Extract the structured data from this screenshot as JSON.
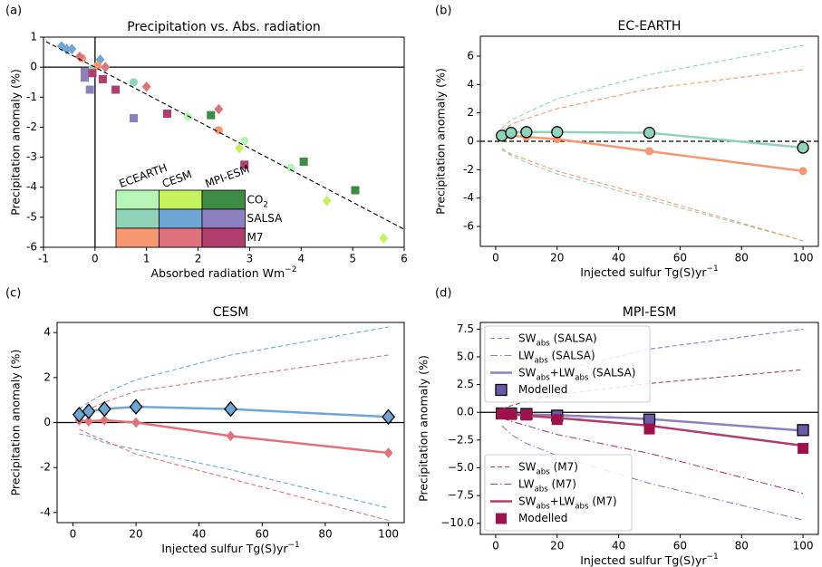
{
  "chart_data": [
    {
      "type": "scatter",
      "panel": "(a)",
      "title": "Precipitation vs. Abs. radiation",
      "xlabel": [
        "Absorbed radiation Wm",
        {
          "sup": "−2"
        }
      ],
      "ylabel": "Precipitation anomaly (%)",
      "xlim": [
        -1,
        6
      ],
      "ylim": [
        -6,
        1
      ],
      "xticks": [
        -1,
        0,
        1,
        2,
        3,
        4,
        5,
        6
      ],
      "yticks": [
        -6,
        -5,
        -4,
        -3,
        -2,
        -1,
        0,
        1
      ],
      "hlines": [
        {
          "y": 0,
          "color": "#000000",
          "linestyle": "solid"
        }
      ],
      "vlines": [
        {
          "x": 0,
          "color": "#000000",
          "linestyle": "solid"
        }
      ],
      "series": [
        {
          "x": [
            1.8,
            2.9,
            3.8
          ],
          "values": [
            -1.65,
            -2.45,
            -3.35
          ],
          "color": "#b5f5b5",
          "marker": "circle",
          "linestyle": "none"
        },
        {
          "x": [
            2.8,
            4.5,
            5.6
          ],
          "values": [
            -2.7,
            -4.45,
            -5.7
          ],
          "color": "#c6f25e",
          "marker": "diamond",
          "linestyle": "none"
        },
        {
          "x": [
            2.25,
            4.05,
            5.05
          ],
          "values": [
            -1.6,
            -3.15,
            -4.1
          ],
          "color": "#3d8b45",
          "marker": "square",
          "linestyle": "none"
        },
        {
          "x": [
            0.75,
            -0.05
          ],
          "values": [
            -0.5,
            -0.05
          ],
          "color": "#8fd4b9",
          "marker": "circle",
          "linestyle": "none"
        },
        {
          "x": [
            -0.65,
            -0.55,
            -0.45,
            0.1
          ],
          "values": [
            0.7,
            0.6,
            0.6,
            0.25
          ],
          "color": "#6ea7d5",
          "marker": "diamond",
          "linestyle": "none"
        },
        {
          "x": [
            0.75,
            -0.1,
            -0.2,
            -0.2
          ],
          "values": [
            -1.7,
            -0.75,
            -0.35,
            -0.15
          ],
          "color": "#8c80c0",
          "marker": "square",
          "linestyle": "none"
        },
        {
          "x": [
            2.4,
            -0.25,
            0.05
          ],
          "values": [
            -2.1,
            0.3,
            0.05
          ],
          "color": "#f69770",
          "marker": "circle",
          "linestyle": "none"
        },
        {
          "x": [
            1.0,
            2.4,
            0.2,
            -0.3
          ],
          "values": [
            -0.65,
            -1.4,
            0.0,
            0.35
          ],
          "color": "#e0727c",
          "marker": "diamond",
          "linestyle": "none"
        },
        {
          "x": [
            0.4,
            1.4,
            2.9,
            0.15,
            -0.05
          ],
          "values": [
            -0.75,
            -1.55,
            -3.25,
            -0.4,
            -0.2
          ],
          "color": "#b03d6b",
          "marker": "square",
          "linestyle": "none"
        },
        {
          "x": [
            -0.95,
            6
          ],
          "values": [
            0.85,
            -5.4
          ],
          "color": "#000000",
          "linestyle": "dashed"
        }
      ],
      "legend_table": {
        "columns": [
          "ECEARTH",
          "CESM",
          "MPI-ESM"
        ],
        "rows": [
          {
            "label": [
              "CO",
              {
                "sub": "2"
              }
            ],
            "colors": [
              "#b5f5b5",
              "#c6f25e",
              "#3d8b45"
            ]
          },
          {
            "label": "SALSA",
            "colors": [
              "#8fd4b9",
              "#6ea7d5",
              "#8c80c0"
            ]
          },
          {
            "label": "M7",
            "colors": [
              "#f69770",
              "#e0727c",
              "#b03d6b"
            ]
          }
        ]
      }
    },
    {
      "type": "line",
      "panel": "(b)",
      "title": "EC-EARTH",
      "xlabel": [
        "Injected sulfur Tg(S)yr",
        {
          "sup": "−1"
        }
      ],
      "ylabel": "Precipitation anomaly (%)",
      "xlim": [
        -5,
        105
      ],
      "ylim": [
        -7.4,
        7.4
      ],
      "xticks": [
        0,
        20,
        40,
        60,
        80,
        100
      ],
      "yticks": [
        -6,
        -4,
        -2,
        0,
        2,
        4,
        6
      ],
      "hlines": [
        {
          "y": 0,
          "color": "#000000",
          "linestyle": "dashed"
        }
      ],
      "x": [
        2,
        5,
        10,
        20,
        50,
        100
      ],
      "series": [
        {
          "values": [
            0.9,
            1.5,
            2.0,
            3.0,
            4.7,
            6.75
          ],
          "color": "#8fd4b9",
          "linestyle": "dashed"
        },
        {
          "values": [
            0.7,
            1.2,
            1.6,
            2.3,
            3.7,
            5.05
          ],
          "color": "#f69770",
          "linestyle": "dashed"
        },
        {
          "values": [
            -0.6,
            -1.0,
            -1.5,
            -2.3,
            -4.1,
            -7.0
          ],
          "color": "#8fd4b9",
          "linestyle": "dashed"
        },
        {
          "values": [
            -0.5,
            -0.9,
            -1.3,
            -2.1,
            -3.9,
            -7.0
          ],
          "color": "#f69770",
          "linestyle": "dashed"
        },
        {
          "values": [
            0.35,
            0.4,
            0.3,
            0.15,
            -0.7,
            -2.1
          ],
          "color": "#f69770",
          "linestyle": "solid",
          "marker": "circle"
        },
        {
          "values": [
            0.4,
            0.6,
            0.65,
            0.65,
            0.6,
            -0.45
          ],
          "color": "#8fd4b9",
          "linestyle": "solid",
          "marker": "circle",
          "edgecolor": "#000000"
        }
      ]
    },
    {
      "type": "line",
      "panel": "(c)",
      "title": "CESM",
      "xlabel": [
        "Injected sulfur Tg(S)yr",
        {
          "sup": "−1"
        }
      ],
      "ylabel": "Precipitation anomaly (%)",
      "xlim": [
        -5,
        105
      ],
      "ylim": [
        -4.45,
        4.45
      ],
      "xticks": [
        0,
        20,
        40,
        60,
        80,
        100
      ],
      "yticks": [
        -4,
        -2,
        0,
        2,
        4
      ],
      "hlines": [
        {
          "y": 0,
          "color": "#000000",
          "linestyle": "solid"
        }
      ],
      "x": [
        2,
        5,
        10,
        20,
        50,
        100
      ],
      "series": [
        {
          "values": [
            0.6,
            0.9,
            1.3,
            1.9,
            3.0,
            4.25
          ],
          "color": "#6ea7d5",
          "linestyle": "dashed"
        },
        {
          "values": [
            0.4,
            0.6,
            0.9,
            1.4,
            2.0,
            3.0
          ],
          "color": "#e0727c",
          "linestyle": "dashed"
        },
        {
          "values": [
            -0.5,
            -0.6,
            -0.9,
            -1.2,
            -2.1,
            -3.8
          ],
          "color": "#6ea7d5",
          "linestyle": "dashed"
        },
        {
          "values": [
            -0.3,
            -0.5,
            -0.8,
            -1.4,
            -2.5,
            -4.35
          ],
          "color": "#e0727c",
          "linestyle": "dashed"
        },
        {
          "values": [
            0.1,
            0.05,
            0.1,
            0.0,
            -0.6,
            -1.35
          ],
          "color": "#e0727c",
          "linestyle": "solid",
          "marker": "diamond"
        },
        {
          "values": [
            0.35,
            0.5,
            0.6,
            0.7,
            0.6,
            0.25
          ],
          "color": "#6ea7d5",
          "linestyle": "solid",
          "marker": "diamond",
          "edgecolor": "#000000"
        }
      ]
    },
    {
      "type": "line",
      "panel": "(d)",
      "title": "MPI-ESM",
      "xlabel": [
        "Injected sulfur Tg(S)yr",
        {
          "sup": "−1"
        }
      ],
      "ylabel": "Precipitation anomaly (%)",
      "xlim": [
        -5,
        105
      ],
      "ylim": [
        -11,
        8.1
      ],
      "xticks": [
        0,
        20,
        40,
        60,
        80,
        100
      ],
      "yticks": [
        {
          "value": -10,
          "label": "−10.0"
        },
        {
          "value": -7.5,
          "label": "−7.5"
        },
        {
          "value": -5,
          "label": "−5.0"
        },
        {
          "value": -2.5,
          "label": "−2.5"
        },
        {
          "value": 0,
          "label": "0.0"
        },
        {
          "value": 2.5,
          "label": "2.5"
        },
        {
          "value": 5,
          "label": "5.0"
        },
        {
          "value": 7.5,
          "label": "7.5"
        }
      ],
      "hlines": [
        {
          "y": 0,
          "color": "#000000",
          "linestyle": "solid"
        }
      ],
      "x": [
        2,
        5,
        10,
        20,
        50,
        100
      ],
      "series": [
        {
          "name": [
            "SW",
            {
              "sub": "abs"
            },
            " (SALSA)"
          ],
          "legend_loc": "upper left",
          "values": [
            1.0,
            1.7,
            2.6,
            3.7,
            5.7,
            7.5
          ],
          "color": "#8c80c0",
          "linestyle": "dashed"
        },
        {
          "name": [
            "LW",
            {
              "sub": "abs"
            },
            " (SALSA)"
          ],
          "legend_loc": "upper left",
          "values": [
            -1.2,
            -2.0,
            -2.8,
            -3.9,
            -6.4,
            -9.7
          ],
          "color": "#8c80c0",
          "linestyle": "dashdot"
        },
        {
          "name": [
            "SW",
            {
              "sub": "abs"
            },
            "+LW",
            {
              "sub": "abs"
            },
            " (SALSA)"
          ],
          "legend_loc": "upper left",
          "values": [
            -0.15,
            -0.15,
            -0.2,
            -0.25,
            -0.6,
            -1.65
          ],
          "color": "#8c80c0",
          "linestyle": "solid"
        },
        {
          "name": "Modelled",
          "legend_loc": "upper left",
          "values": [
            -0.1,
            -0.1,
            -0.15,
            -0.3,
            -0.65,
            -1.6
          ],
          "color": "#6a5aa8",
          "linestyle": "none",
          "marker": "square",
          "edgecolor": "#000000"
        },
        {
          "name": [
            "SW",
            {
              "sub": "abs"
            },
            " (M7)"
          ],
          "legend_loc": "lower left",
          "values": [
            0.3,
            0.6,
            1.0,
            1.6,
            2.6,
            3.85
          ],
          "color": "#b03d6b",
          "linestyle": "dashed"
        },
        {
          "name": [
            "LW",
            {
              "sub": "abs"
            },
            " (M7)"
          ],
          "legend_loc": "lower left",
          "values": [
            -0.5,
            -0.8,
            -1.2,
            -2.0,
            -3.7,
            -7.3
          ],
          "color": "#b03d6b",
          "linestyle": "dashdot"
        },
        {
          "name": [
            "SW",
            {
              "sub": "abs"
            },
            "+LW",
            {
              "sub": "abs"
            },
            " (M7)"
          ],
          "legend_loc": "lower left",
          "values": [
            -0.2,
            -0.2,
            -0.3,
            -0.5,
            -1.2,
            -3.0
          ],
          "color": "#b03d6b",
          "linestyle": "solid"
        },
        {
          "name": "Modelled",
          "legend_loc": "lower left",
          "values": [
            -0.15,
            -0.2,
            -0.25,
            -0.65,
            -1.5,
            -3.25
          ],
          "color": "#a0104a",
          "linestyle": "none",
          "marker": "square"
        }
      ]
    }
  ]
}
